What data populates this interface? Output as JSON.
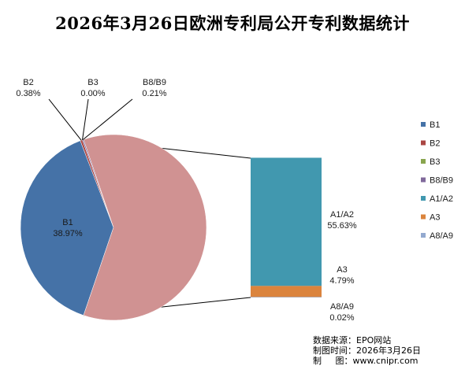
{
  "chart_data": {
    "type": "bar-of-pie",
    "title": "2026年3月26日欧洲专利局公开专利数据统计",
    "pie": [
      {
        "name": "B1",
        "label": "B1",
        "value_label": "38.97%",
        "value": 38.97,
        "color": "#4572A7"
      },
      {
        "name": "B2",
        "label": "B2",
        "value_label": "0.38%",
        "value": 0.38,
        "color": "#AA4643"
      },
      {
        "name": "B3",
        "label": "B3",
        "value_label": "0.00%",
        "value": 0.0,
        "color": "#89A54E"
      },
      {
        "name": "B8/B9",
        "label": "B8/B9",
        "value_label": "0.21%",
        "value": 0.21,
        "color": "#80699B"
      },
      {
        "name": "Other",
        "label": "",
        "value_label": "",
        "value": 60.44,
        "color": "#D09292"
      }
    ],
    "bar": [
      {
        "name": "A1/A2",
        "label": "A1/A2",
        "value_label": "55.63%",
        "value": 55.63,
        "color": "#4198AF"
      },
      {
        "name": "A3",
        "label": "A3",
        "value_label": "4.79%",
        "value": 4.79,
        "color": "#DB843D"
      },
      {
        "name": "A8/A9",
        "label": "A8/A9",
        "value_label": "0.02%",
        "value": 0.02,
        "color": "#93A9CF"
      }
    ],
    "legend": [
      {
        "name": "B1",
        "color": "#4572A7"
      },
      {
        "name": "B2",
        "color": "#AA4643"
      },
      {
        "name": "B3",
        "color": "#89A54E"
      },
      {
        "name": "B8/B9",
        "color": "#80699B"
      },
      {
        "name": "A1/A2",
        "color": "#4198AF"
      },
      {
        "name": "A3",
        "color": "#DB843D"
      },
      {
        "name": "A8/A9",
        "color": "#93A9CF"
      }
    ],
    "legend_position": "right"
  },
  "source": {
    "line1": "数据来源：EPO网站",
    "line2": "制图时间：2026年3月26日",
    "line3": "制     图：www.cnipr.com"
  }
}
